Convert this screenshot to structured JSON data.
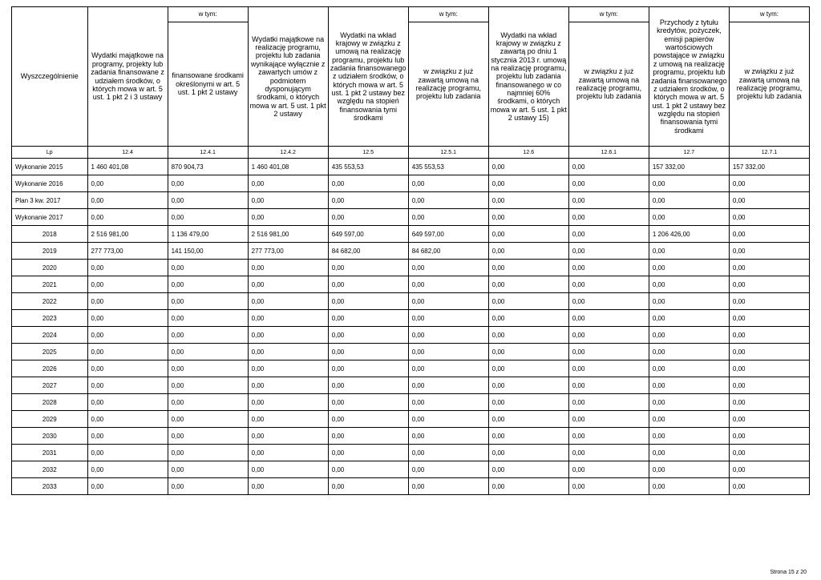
{
  "footer": "Strona 15 z 20",
  "wyszcz": "Wyszczególnienie",
  "wtym": "w tym:",
  "headers": {
    "c1": "Wydatki majątkowe na programy, projekty lub zadania finansowane z udziałem środków, o których mowa w art. 5 ust. 1 pkt 2 i 3 ustawy",
    "c2": "finansowane środkami określonymi w art. 5 ust. 1 pkt 2 ustawy",
    "c3": "Wydatki majątkowe na realizację programu, projektu lub zadania wynikające wyłącznie z zawartych umów z podmiotem dysponującym środkami, o których mowa w art. 5 ust. 1 pkt 2 ustawy",
    "c4": "Wydatki na wkład krajowy w związku z umową na realizację programu, projektu lub zadania finansowanego z udziałem środków, o których mowa w art. 5 ust. 1 pkt 2 ustawy bez względu na stopień finansowania tymi środkami",
    "c5": "w związku z już zawartą umową na realizację programu, projektu lub zadania",
    "c6": "Wydatki na wkład krajowy w związku z zawartą po dniu 1 stycznia 2013 r. umową na realizację programu, projektu lub zadania finansowanego w co najmniej 60% środkami, o których mowa w art. 5 ust. 1 pkt 2 ustawy 15)",
    "c7": "w związku z już zawartą umową na realizację programu, projektu lub zadania",
    "c8": "Przychody z tytułu kredytów, pożyczek, emisji papierów wartościowych powstające w związku z umową na realizację programu, projektu lub zadania finansowanego z udziałem środków, o których mowa w art. 5 ust. 1 pkt 2 ustawy bez względu na stopień finansowania tymi środkami",
    "c9": "w związku z już zawartą umową na realizację programu, projektu lub zadania"
  },
  "lp": [
    "Lp",
    "12.4",
    "12.4.1",
    "12.4.2",
    "12.5",
    "12.5.1",
    "12.6",
    "12.6.1",
    "12.7",
    "12.7.1"
  ],
  "rows": [
    {
      "l": "Wykonanie 2015",
      "k": "lbl",
      "v": [
        "1 460 401,08",
        "870 904,73",
        "1 460 401,08",
        "435 553,53",
        "435 553,53",
        "0,00",
        "0,00",
        "157 332,00",
        "157 332,00"
      ]
    },
    {
      "l": "Wykonanie 2016",
      "k": "lbl",
      "v": [
        "0,00",
        "0,00",
        "0,00",
        "0,00",
        "0,00",
        "0,00",
        "0,00",
        "0,00",
        "0,00"
      ]
    },
    {
      "l": "Plan 3 kw. 2017",
      "k": "lbl",
      "v": [
        "0,00",
        "0,00",
        "0,00",
        "0,00",
        "0,00",
        "0,00",
        "0,00",
        "0,00",
        "0,00"
      ]
    },
    {
      "l": "Wykonanie 2017",
      "k": "lbl",
      "v": [
        "0,00",
        "0,00",
        "0,00",
        "0,00",
        "0,00",
        "0,00",
        "0,00",
        "0,00",
        "0,00"
      ]
    },
    {
      "l": "2018",
      "k": "yr",
      "v": [
        "2 516 981,00",
        "1 136 479,00",
        "2 516 981,00",
        "649 597,00",
        "649 597,00",
        "0,00",
        "0,00",
        "1 206 426,00",
        "0,00"
      ]
    },
    {
      "l": "2019",
      "k": "yr",
      "v": [
        "277 773,00",
        "141 150,00",
        "277 773,00",
        "84 682,00",
        "84 682,00",
        "0,00",
        "0,00",
        "0,00",
        "0,00"
      ]
    },
    {
      "l": "2020",
      "k": "yr",
      "v": [
        "0,00",
        "0,00",
        "0,00",
        "0,00",
        "0,00",
        "0,00",
        "0,00",
        "0,00",
        "0,00"
      ]
    },
    {
      "l": "2021",
      "k": "yr",
      "v": [
        "0,00",
        "0,00",
        "0,00",
        "0,00",
        "0,00",
        "0,00",
        "0,00",
        "0,00",
        "0,00"
      ]
    },
    {
      "l": "2022",
      "k": "yr",
      "v": [
        "0,00",
        "0,00",
        "0,00",
        "0,00",
        "0,00",
        "0,00",
        "0,00",
        "0,00",
        "0,00"
      ]
    },
    {
      "l": "2023",
      "k": "yr",
      "v": [
        "0,00",
        "0,00",
        "0,00",
        "0,00",
        "0,00",
        "0,00",
        "0,00",
        "0,00",
        "0,00"
      ]
    },
    {
      "l": "2024",
      "k": "yr",
      "v": [
        "0,00",
        "0,00",
        "0,00",
        "0,00",
        "0,00",
        "0,00",
        "0,00",
        "0,00",
        "0,00"
      ]
    },
    {
      "l": "2025",
      "k": "yr",
      "v": [
        "0,00",
        "0,00",
        "0,00",
        "0,00",
        "0,00",
        "0,00",
        "0,00",
        "0,00",
        "0,00"
      ]
    },
    {
      "l": "2026",
      "k": "yr",
      "v": [
        "0,00",
        "0,00",
        "0,00",
        "0,00",
        "0,00",
        "0,00",
        "0,00",
        "0,00",
        "0,00"
      ]
    },
    {
      "l": "2027",
      "k": "yr",
      "v": [
        "0,00",
        "0,00",
        "0,00",
        "0,00",
        "0,00",
        "0,00",
        "0,00",
        "0,00",
        "0,00"
      ]
    },
    {
      "l": "2028",
      "k": "yr",
      "v": [
        "0,00",
        "0,00",
        "0,00",
        "0,00",
        "0,00",
        "0,00",
        "0,00",
        "0,00",
        "0,00"
      ]
    },
    {
      "l": "2029",
      "k": "yr",
      "v": [
        "0,00",
        "0,00",
        "0,00",
        "0,00",
        "0,00",
        "0,00",
        "0,00",
        "0,00",
        "0,00"
      ]
    },
    {
      "l": "2030",
      "k": "yr",
      "v": [
        "0,00",
        "0,00",
        "0,00",
        "0,00",
        "0,00",
        "0,00",
        "0,00",
        "0,00",
        "0,00"
      ]
    },
    {
      "l": "2031",
      "k": "yr",
      "v": [
        "0,00",
        "0,00",
        "0,00",
        "0,00",
        "0,00",
        "0,00",
        "0,00",
        "0,00",
        "0,00"
      ]
    },
    {
      "l": "2032",
      "k": "yr",
      "v": [
        "0,00",
        "0,00",
        "0,00",
        "0,00",
        "0,00",
        "0,00",
        "0,00",
        "0,00",
        "0,00"
      ]
    },
    {
      "l": "2033",
      "k": "yr",
      "v": [
        "0,00",
        "0,00",
        "0,00",
        "0,00",
        "0,00",
        "0,00",
        "0,00",
        "0,00",
        "0,00"
      ]
    }
  ]
}
